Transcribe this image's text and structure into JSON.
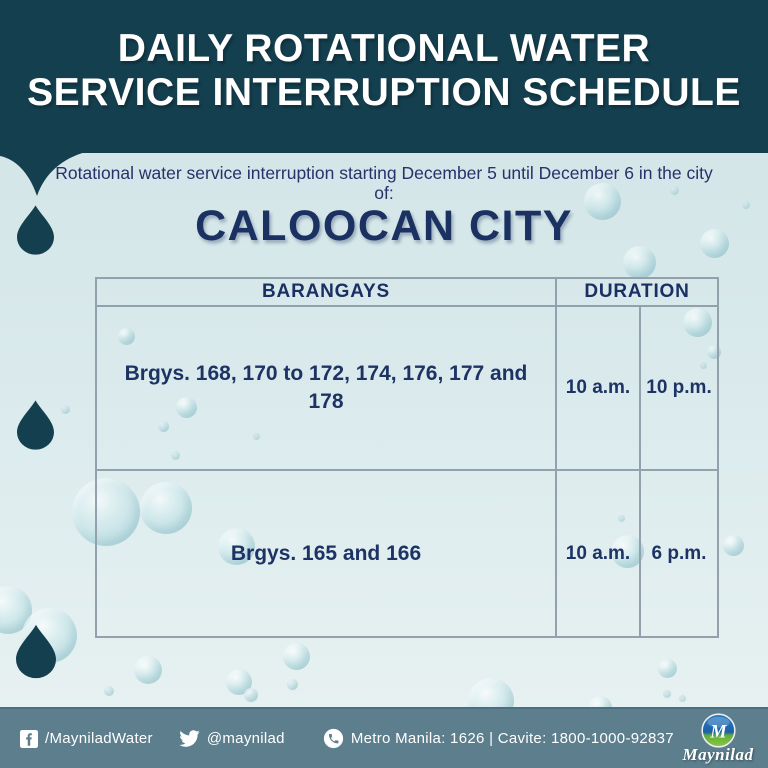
{
  "poster": {
    "title": {
      "line1": "DAILY ROTATIONAL WATER",
      "line2": "SERVICE INTERRUPTION SCHEDULE"
    },
    "announcement": {
      "intro": "Rotational water service interruption starting December 5 until December 6 in the city of:",
      "city": "CALOOCAN CITY"
    },
    "schedule_table": {
      "headers": {
        "barangays": "BARANGAYS",
        "duration": "DURATION"
      },
      "rows": [
        {
          "barangays": "Brgys. 168, 170 to 172, 174, 176, 177 and 178",
          "start": "10 a.m.",
          "end": "10 p.m."
        },
        {
          "barangays": "Brgys. 165 and 166",
          "start": "10 a.m.",
          "end": "6 p.m."
        }
      ]
    },
    "footer": {
      "facebook_handle": "/MayniladWater",
      "twitter_handle": "@maynilad",
      "hotline": "Metro Manila: 1626 | Cavite: 1800-1000-92837",
      "brand_name": "Maynilad",
      "logo_monogram": "M"
    },
    "colors": {
      "header_bg": "#143f4f",
      "text_navy": "#1c3364",
      "footer_bg": "#5c7e8d",
      "logo_blue": "#1e6ab0",
      "logo_green": "#8dc63f",
      "bubble_teal": "#b8dfe4"
    }
  }
}
